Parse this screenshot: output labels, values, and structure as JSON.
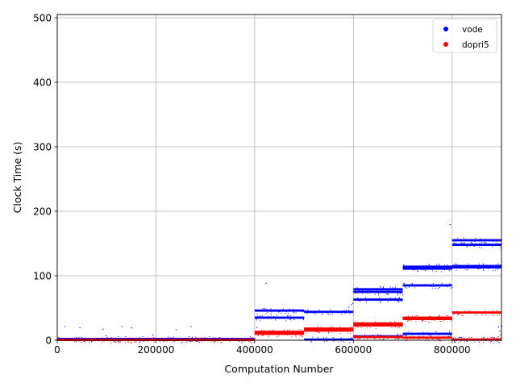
{
  "chart_data": {
    "type": "scatter",
    "title": "",
    "xlabel": "Computation Number",
    "ylabel": "Clock Time (s)",
    "xlim": [
      0,
      900000
    ],
    "ylim": [
      0,
      505
    ],
    "x_ticks": [
      0,
      200000,
      400000,
      600000,
      800000
    ],
    "x_tick_labels": [
      "0",
      "200000",
      "400000",
      "600000",
      "800000"
    ],
    "y_ticks": [
      0,
      100,
      200,
      300,
      400,
      500
    ],
    "y_tick_labels": [
      "0",
      "100",
      "200",
      "300",
      "400",
      "500"
    ],
    "grid": true,
    "legend_position": "top-right",
    "series": [
      {
        "name": "vode",
        "color": "#0000ff",
        "bands": [
          {
            "x": [
              0,
              400000
            ],
            "y": 2
          },
          {
            "x": [
              400000,
              500000
            ],
            "y": 46
          },
          {
            "x": [
              400000,
              500000
            ],
            "y": 35
          },
          {
            "x": [
              500000,
              600000
            ],
            "y": 44
          },
          {
            "x": [
              500000,
              600000
            ],
            "y": 1
          },
          {
            "x": [
              600000,
              700000
            ],
            "y": 79
          },
          {
            "x": [
              600000,
              700000
            ],
            "y": 75
          },
          {
            "x": [
              600000,
              700000
            ],
            "y": 63
          },
          {
            "x": [
              600000,
              700000
            ],
            "y": 6
          },
          {
            "x": [
              700000,
              800000
            ],
            "y": 114
          },
          {
            "x": [
              700000,
              800000
            ],
            "y": 111
          },
          {
            "x": [
              700000,
              800000
            ],
            "y": 85
          },
          {
            "x": [
              700000,
              800000
            ],
            "y": 10
          },
          {
            "x": [
              800000,
              900000
            ],
            "y": 155
          },
          {
            "x": [
              800000,
              900000
            ],
            "y": 148
          },
          {
            "x": [
              800000,
              900000
            ],
            "y": 115
          },
          {
            "x": [
              800000,
              900000
            ],
            "y": 113
          },
          {
            "x": [
              800000,
              900000
            ],
            "y": 1
          }
        ],
        "outliers": [
          {
            "x": 15000,
            "y": 22
          },
          {
            "x": 45000,
            "y": 20
          },
          {
            "x": 92000,
            "y": 18
          },
          {
            "x": 98000,
            "y": 8
          },
          {
            "x": 130000,
            "y": 22
          },
          {
            "x": 150000,
            "y": 20
          },
          {
            "x": 193000,
            "y": 9
          },
          {
            "x": 240000,
            "y": 17
          },
          {
            "x": 270000,
            "y": 22
          },
          {
            "x": 404000,
            "y": 21
          },
          {
            "x": 408000,
            "y": 14
          },
          {
            "x": 422000,
            "y": 89
          },
          {
            "x": 590000,
            "y": 52
          },
          {
            "x": 595000,
            "y": 56
          },
          {
            "x": 598000,
            "y": 58
          },
          {
            "x": 604000,
            "y": 74
          },
          {
            "x": 795000,
            "y": 180
          },
          {
            "x": 893000,
            "y": 21
          },
          {
            "x": 896000,
            "y": 15
          },
          {
            "x": 898000,
            "y": 23
          }
        ]
      },
      {
        "name": "dopri5",
        "color": "#ff0000",
        "bands": [
          {
            "x": [
              0,
              400000
            ],
            "y": 0.5
          },
          {
            "x": [
              400000,
              500000
            ],
            "y": 13
          },
          {
            "x": [
              400000,
              500000
            ],
            "y": 10
          },
          {
            "x": [
              500000,
              600000
            ],
            "y": 18
          },
          {
            "x": [
              500000,
              600000
            ],
            "y": 15
          },
          {
            "x": [
              600000,
              700000
            ],
            "y": 26
          },
          {
            "x": [
              600000,
              700000
            ],
            "y": 23
          },
          {
            "x": [
              600000,
              700000
            ],
            "y": 5
          },
          {
            "x": [
              700000,
              800000
            ],
            "y": 35
          },
          {
            "x": [
              700000,
              800000
            ],
            "y": 33
          },
          {
            "x": [
              700000,
              800000
            ],
            "y": 4
          },
          {
            "x": [
              800000,
              900000
            ],
            "y": 43
          },
          {
            "x": [
              800000,
              900000
            ],
            "y": 1
          }
        ],
        "outliers": [
          {
            "x": 889000,
            "y": 3
          },
          {
            "x": 893000,
            "y": 6
          },
          {
            "x": 897000,
            "y": 9
          }
        ]
      }
    ]
  }
}
